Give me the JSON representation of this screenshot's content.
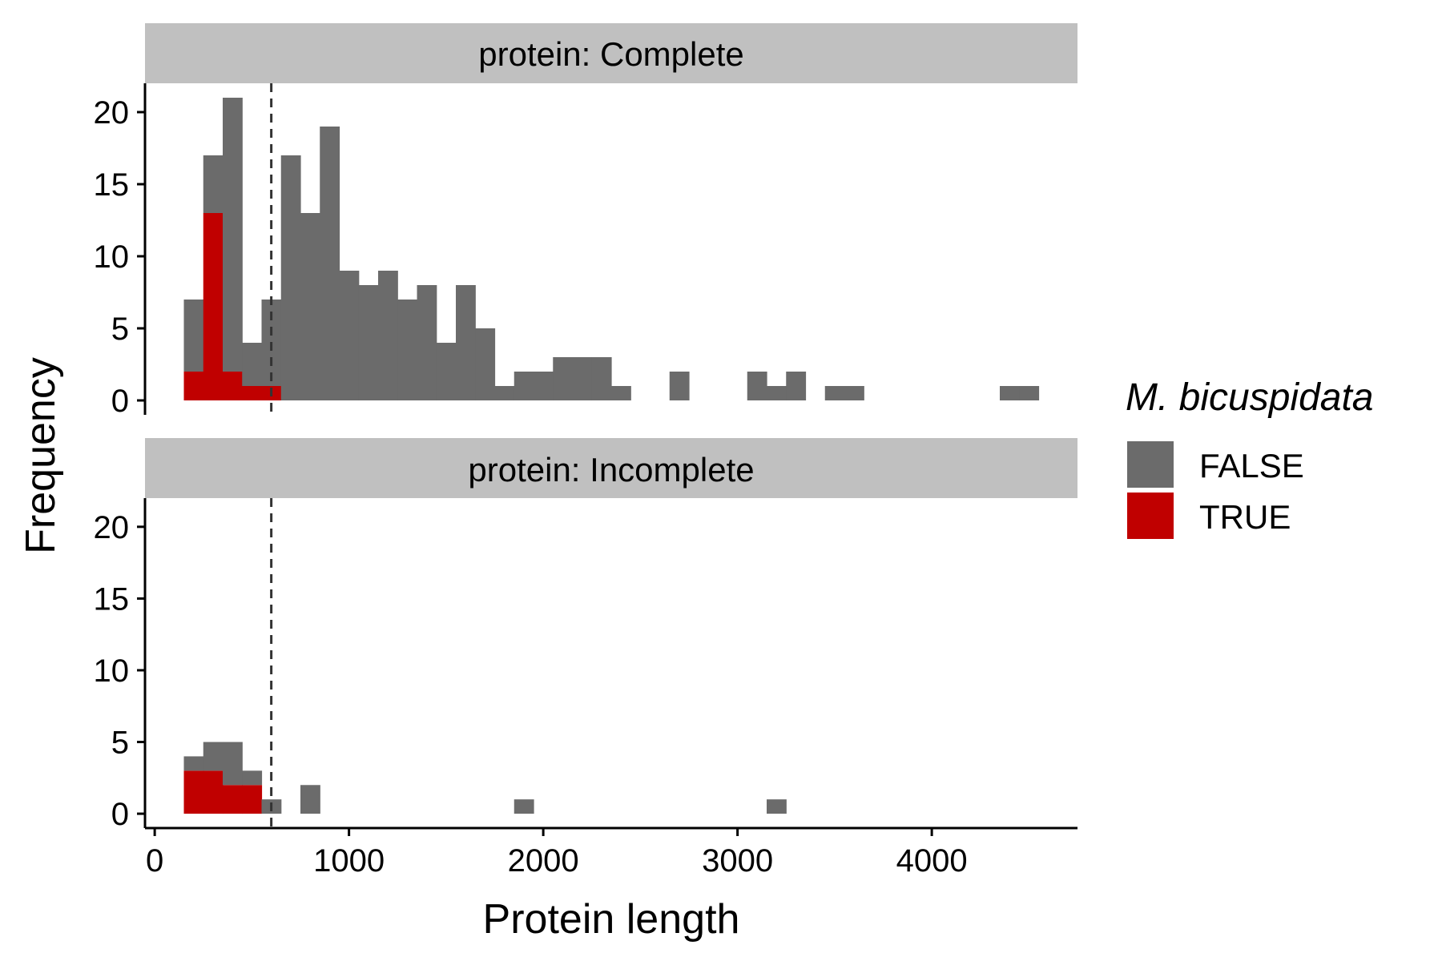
{
  "chart_data": {
    "type": "bar",
    "subtype": "stacked histogram, faceted",
    "xlabel": "Protein length",
    "ylabel": "Frequency",
    "xlim": [
      -50,
      4750
    ],
    "ylim": [
      -1,
      22
    ],
    "x_ticks": [
      0,
      1000,
      2000,
      3000,
      4000
    ],
    "y_ticks": [
      0,
      5,
      10,
      15,
      20
    ],
    "bin_width": 100,
    "reference_line": {
      "x": 600,
      "style": "dashed"
    },
    "legend": {
      "title": "M. bicuspidata",
      "placement": "right",
      "entries": [
        {
          "label": "FALSE",
          "color": "#6b6b6b"
        },
        {
          "label": "TRUE",
          "color": "#c00000"
        }
      ]
    },
    "colors": {
      "FALSE": "#6b6b6b",
      "TRUE": "#c00000",
      "strip": "#c0c0c0"
    },
    "panels": [
      {
        "label": "protein: Complete",
        "bins_x": [
          200,
          300,
          400,
          500,
          600,
          700,
          800,
          900,
          1000,
          1100,
          1200,
          1300,
          1400,
          1500,
          1600,
          1700,
          1800,
          1900,
          2000,
          2100,
          2200,
          2300,
          2400,
          2700,
          3100,
          3200,
          3300,
          3500,
          3600,
          4400,
          4500
        ],
        "series": [
          {
            "name": "TRUE",
            "values": [
              2,
              13,
              2,
              1,
              1,
              0,
              0,
              0,
              0,
              0,
              0,
              0,
              0,
              0,
              0,
              0,
              0,
              0,
              0,
              0,
              0,
              0,
              0,
              0,
              0,
              0,
              0,
              0,
              0,
              0,
              0
            ]
          },
          {
            "name": "FALSE",
            "values": [
              5,
              4,
              19,
              3,
              6,
              17,
              13,
              19,
              9,
              8,
              9,
              7,
              8,
              4,
              8,
              5,
              1,
              2,
              2,
              3,
              3,
              3,
              1,
              2,
              2,
              1,
              2,
              1,
              1,
              1,
              1
            ]
          }
        ]
      },
      {
        "label": "protein: Incomplete",
        "bins_x": [
          200,
          300,
          400,
          500,
          600,
          800,
          1900,
          3200
        ],
        "series": [
          {
            "name": "TRUE",
            "values": [
              3,
              3,
              2,
              2,
              0,
              0,
              0,
              0
            ]
          },
          {
            "name": "FALSE",
            "values": [
              1,
              2,
              3,
              1,
              1,
              2,
              1,
              1
            ]
          }
        ]
      }
    ]
  }
}
